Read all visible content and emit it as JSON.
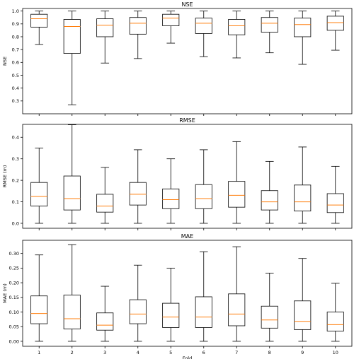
{
  "colors": {
    "median": "#ff7f0e",
    "box": "#000000",
    "background": "#ffffff"
  },
  "chart_data": [
    {
      "type": "box",
      "title": "NSE",
      "xlabel": "",
      "ylabel": "NSE",
      "ylim": [
        0.2,
        1.02
      ],
      "yticks": [
        0.3,
        0.4,
        0.5,
        0.6,
        0.7,
        0.8,
        0.9,
        1.0
      ],
      "ytick_labels": [
        "0.3",
        "0.4",
        "0.5",
        "0.6",
        "0.7",
        "0.8",
        "0.9",
        "1.0"
      ],
      "categories": [
        "1",
        "2",
        "3",
        "4",
        "5",
        "6",
        "7",
        "8",
        "9",
        "10"
      ],
      "show_xtick_labels": false,
      "boxes": [
        {
          "min": 0.74,
          "q1": 0.875,
          "median": 0.94,
          "q3": 0.975,
          "max": 1.0
        },
        {
          "min": 0.27,
          "q1": 0.67,
          "median": 0.88,
          "q3": 0.935,
          "max": 1.0
        },
        {
          "min": 0.595,
          "q1": 0.8,
          "median": 0.89,
          "q3": 0.94,
          "max": 1.0
        },
        {
          "min": 0.63,
          "q1": 0.82,
          "median": 0.905,
          "q3": 0.95,
          "max": 1.0
        },
        {
          "min": 0.75,
          "q1": 0.885,
          "median": 0.945,
          "q3": 0.975,
          "max": 1.0
        },
        {
          "min": 0.645,
          "q1": 0.825,
          "median": 0.905,
          "q3": 0.945,
          "max": 1.0
        },
        {
          "min": 0.635,
          "q1": 0.815,
          "median": 0.885,
          "q3": 0.935,
          "max": 1.0
        },
        {
          "min": 0.675,
          "q1": 0.835,
          "median": 0.905,
          "q3": 0.95,
          "max": 1.0
        },
        {
          "min": 0.585,
          "q1": 0.8,
          "median": 0.895,
          "q3": 0.945,
          "max": 1.0
        },
        {
          "min": 0.695,
          "q1": 0.85,
          "median": 0.91,
          "q3": 0.96,
          "max": 1.0
        }
      ]
    },
    {
      "type": "box",
      "title": "RMSE",
      "xlabel": "",
      "ylabel": "RMSE (m)",
      "ylim": [
        -0.023,
        0.46
      ],
      "yticks": [
        0.0,
        0.1,
        0.2,
        0.3,
        0.4
      ],
      "ytick_labels": [
        "0.0",
        "0.1",
        "0.2",
        "0.3",
        "0.4"
      ],
      "categories": [
        "1",
        "2",
        "3",
        "4",
        "5",
        "6",
        "7",
        "8",
        "9",
        "10"
      ],
      "show_xtick_labels": false,
      "boxes": [
        {
          "min": 0.0,
          "q1": 0.08,
          "median": 0.125,
          "q3": 0.19,
          "max": 0.35
        },
        {
          "min": 0.0,
          "q1": 0.062,
          "median": 0.115,
          "q3": 0.22,
          "max": 0.458
        },
        {
          "min": 0.0,
          "q1": 0.052,
          "median": 0.08,
          "q3": 0.135,
          "max": 0.26
        },
        {
          "min": 0.0,
          "q1": 0.085,
          "median": 0.135,
          "q3": 0.19,
          "max": 0.342
        },
        {
          "min": 0.0,
          "q1": 0.068,
          "median": 0.11,
          "q3": 0.16,
          "max": 0.3
        },
        {
          "min": 0.0,
          "q1": 0.068,
          "median": 0.115,
          "q3": 0.18,
          "max": 0.342
        },
        {
          "min": 0.0,
          "q1": 0.075,
          "median": 0.13,
          "q3": 0.195,
          "max": 0.38
        },
        {
          "min": 0.0,
          "q1": 0.062,
          "median": 0.1,
          "q3": 0.152,
          "max": 0.288
        },
        {
          "min": 0.0,
          "q1": 0.057,
          "median": 0.1,
          "q3": 0.178,
          "max": 0.355
        },
        {
          "min": 0.0,
          "q1": 0.05,
          "median": 0.085,
          "q3": 0.138,
          "max": 0.265
        }
      ]
    },
    {
      "type": "box",
      "title": "MAE",
      "xlabel": "Fold",
      "ylabel": "MAE (m)",
      "ylim": [
        -0.017,
        0.345
      ],
      "yticks": [
        0.0,
        0.05,
        0.1,
        0.15,
        0.2,
        0.25,
        0.3
      ],
      "ytick_labels": [
        "0.00",
        "0.05",
        "0.10",
        "0.15",
        "0.20",
        "0.25",
        "0.30"
      ],
      "categories": [
        "1",
        "2",
        "3",
        "4",
        "5",
        "6",
        "7",
        "8",
        "9",
        "10"
      ],
      "show_xtick_labels": true,
      "boxes": [
        {
          "min": 0.0,
          "q1": 0.06,
          "median": 0.095,
          "q3": 0.155,
          "max": 0.295
        },
        {
          "min": 0.0,
          "q1": 0.042,
          "median": 0.077,
          "q3": 0.158,
          "max": 0.33
        },
        {
          "min": 0.0,
          "q1": 0.038,
          "median": 0.055,
          "q3": 0.097,
          "max": 0.188
        },
        {
          "min": 0.0,
          "q1": 0.06,
          "median": 0.093,
          "q3": 0.142,
          "max": 0.26
        },
        {
          "min": 0.0,
          "q1": 0.047,
          "median": 0.083,
          "q3": 0.13,
          "max": 0.25
        },
        {
          "min": 0.0,
          "q1": 0.047,
          "median": 0.083,
          "q3": 0.152,
          "max": 0.306
        },
        {
          "min": 0.0,
          "q1": 0.053,
          "median": 0.093,
          "q3": 0.162,
          "max": 0.323
        },
        {
          "min": 0.0,
          "q1": 0.045,
          "median": 0.073,
          "q3": 0.12,
          "max": 0.233
        },
        {
          "min": 0.0,
          "q1": 0.04,
          "median": 0.068,
          "q3": 0.138,
          "max": 0.283
        },
        {
          "min": 0.0,
          "q1": 0.035,
          "median": 0.057,
          "q3": 0.1,
          "max": 0.198
        }
      ]
    }
  ]
}
